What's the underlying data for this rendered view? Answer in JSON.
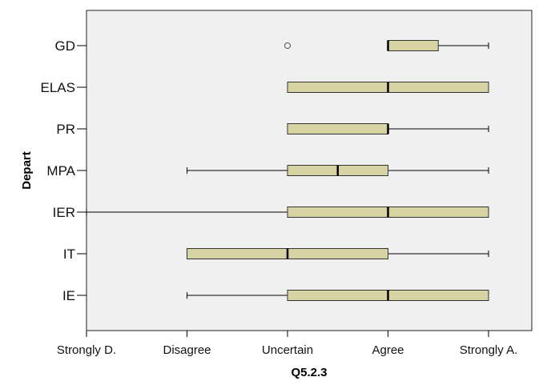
{
  "chart_data": {
    "type": "boxplot",
    "orientation": "horizontal",
    "xlabel": "Q5.2.3",
    "ylabel": "Depart",
    "x_ticks": [
      1,
      2,
      3,
      4,
      5
    ],
    "x_tick_labels": [
      "Strongly D.",
      "Disagree",
      "Uncertain",
      "Agree",
      "Strongly A."
    ],
    "xlim": [
      1,
      5
    ],
    "categories": [
      "GD",
      "ELAS",
      "PR",
      "MPA",
      "IER",
      "IT",
      "IE"
    ],
    "boxes": [
      {
        "category": "GD",
        "whisker_low": 4,
        "q1": 4,
        "median": 4,
        "q3": 4.5,
        "whisker_high": 5,
        "outliers": [
          3
        ]
      },
      {
        "category": "ELAS",
        "whisker_low": 3,
        "q1": 3,
        "median": 4,
        "q3": 5,
        "whisker_high": 5,
        "outliers": []
      },
      {
        "category": "PR",
        "whisker_low": 3,
        "q1": 3,
        "median": 4,
        "q3": 4,
        "whisker_high": 5,
        "outliers": []
      },
      {
        "category": "MPA",
        "whisker_low": 2,
        "q1": 3,
        "median": 3.5,
        "q3": 4,
        "whisker_high": 5,
        "outliers": []
      },
      {
        "category": "IER",
        "whisker_low": 1,
        "q1": 3,
        "median": 4,
        "q3": 5,
        "whisker_high": 5,
        "outliers": []
      },
      {
        "category": "IT",
        "whisker_low": 2,
        "q1": 2,
        "median": 3,
        "q3": 4,
        "whisker_high": 5,
        "outliers": []
      },
      {
        "category": "IE",
        "whisker_low": 2,
        "q1": 3,
        "median": 4,
        "q3": 5,
        "whisker_high": 5,
        "outliers": []
      }
    ],
    "colors": {
      "plot_background": "#f0f0f0",
      "box_fill": "#d8d3a3",
      "box_stroke": "#333333",
      "whisker": "#000000",
      "median": "#000000"
    },
    "grid": false,
    "legend": "none"
  }
}
